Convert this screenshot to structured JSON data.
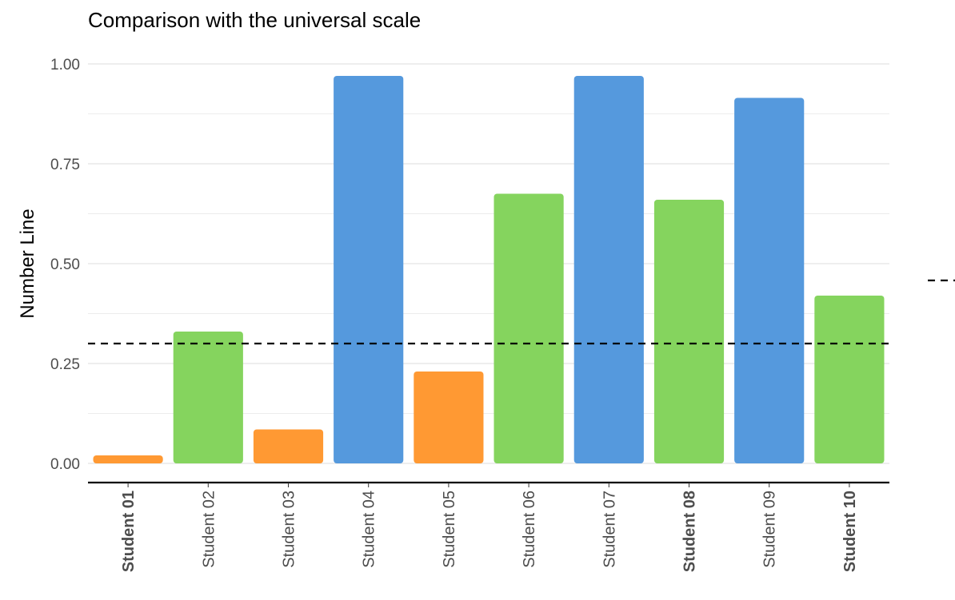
{
  "chart_data": {
    "type": "bar",
    "title": "Comparison with the universal scale",
    "ylabel": "Number Line",
    "xlabel": "",
    "ylim": [
      0,
      1
    ],
    "yticks": [
      "0.00",
      "0.25",
      "0.50",
      "0.75",
      "1.00"
    ],
    "grid": true,
    "reference_line": 0.3,
    "categories": [
      "Student 01",
      "Student 02",
      "Student 03",
      "Student 04",
      "Student 05",
      "Student 06",
      "Student 07",
      "Student 08",
      "Student 09",
      "Student 10"
    ],
    "bold_categories": [
      "Student 01",
      "Student 08",
      "Student 10"
    ],
    "values": [
      0.02,
      0.33,
      0.085,
      0.97,
      0.23,
      0.675,
      0.97,
      0.66,
      0.915,
      0.42
    ],
    "bar_colors": [
      "#FF9933",
      "#85D45E",
      "#FF9933",
      "#5599DD",
      "#FF9933",
      "#85D45E",
      "#5599DD",
      "#85D45E",
      "#5599DD",
      "#85D45E"
    ]
  }
}
